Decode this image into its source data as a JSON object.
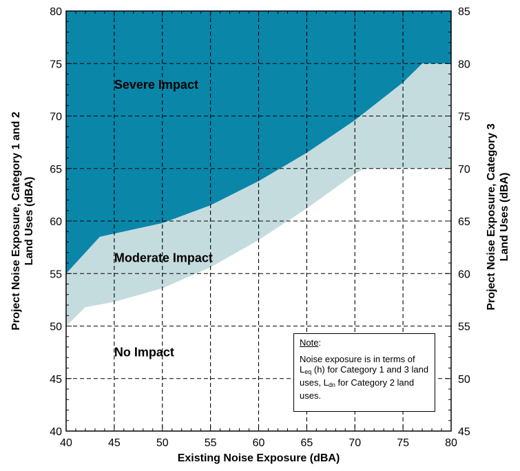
{
  "chart_data": {
    "type": "area",
    "xlabel": "Existing Noise Exposure (dBA)",
    "ylabel_left": "Project Noise Exposure, Category 1 and 2 Land Uses (dBA)",
    "ylabel_right": "Project Noise Exposure, Category 3 Land Uses (dBA)",
    "xlim": [
      40,
      80
    ],
    "ylim_left": [
      40,
      80
    ],
    "ylim_right": [
      45,
      85
    ],
    "x_ticks": [
      40,
      45,
      50,
      55,
      60,
      65,
      70,
      75,
      80
    ],
    "y_ticks_left": [
      40,
      45,
      50,
      55,
      60,
      65,
      70,
      75,
      80
    ],
    "y_ticks_right": [
      45,
      50,
      55,
      60,
      65,
      70,
      75,
      80,
      85
    ],
    "grid": true,
    "colors": {
      "severe": "#0a86a9",
      "moderate": "#c5dcdf",
      "none": "#ffffff",
      "grid": "#000000"
    },
    "regions": [
      {
        "label": "Severe Impact"
      },
      {
        "label": "Moderate Impact"
      },
      {
        "label": "No Impact"
      }
    ],
    "severe_threshold": {
      "x": [
        40,
        43.5,
        45,
        50,
        55,
        60,
        65,
        70,
        75,
        77,
        80
      ],
      "y": [
        55,
        58.5,
        58.8,
        59.8,
        61.5,
        63.8,
        66.5,
        69.6,
        73.2,
        75,
        75
      ]
    },
    "moderate_threshold": {
      "x": [
        40,
        42,
        45,
        50,
        55,
        60,
        65,
        70,
        71,
        80
      ],
      "y": [
        50,
        51.8,
        52.3,
        53.6,
        55.6,
        58.2,
        61.2,
        64.5,
        65,
        65
      ]
    }
  },
  "note": {
    "title": "Note",
    "text_1": "Noise exposure is in terms of L",
    "sub_eq": "eq",
    "text_2": " (h) for Category 1 and 3 land uses, L",
    "sub_dn": "dn",
    "text_3": " for Category 2 land uses."
  }
}
